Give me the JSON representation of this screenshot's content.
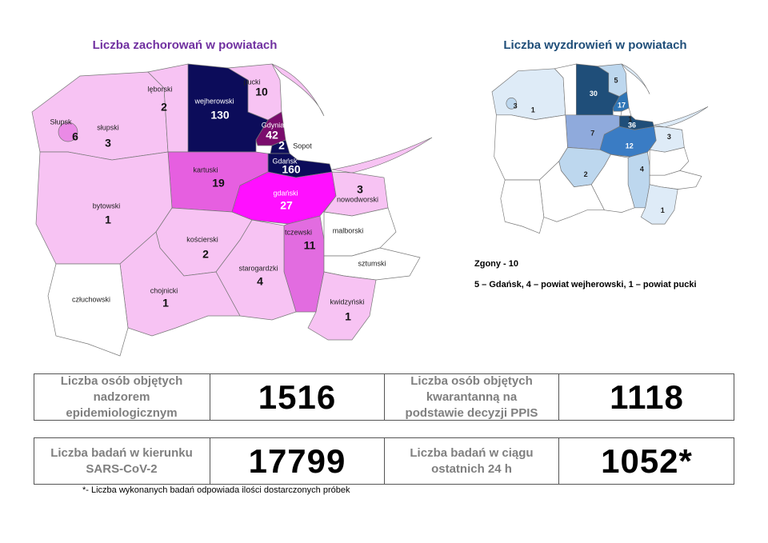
{
  "left_map": {
    "title": "Liczba zachorowań w powiatach",
    "regions": [
      {
        "name": "słupski",
        "value": 3,
        "color": "#f7c3f3"
      },
      {
        "name": "Słupsk",
        "value": 6,
        "color": "#ea8ae6"
      },
      {
        "name": "lęborski",
        "value": 2,
        "color": "#f7c3f3"
      },
      {
        "name": "wejherowski",
        "value": 130,
        "color": "#0c0c5a"
      },
      {
        "name": "pucki",
        "value": 10,
        "color": "#f7c3f3"
      },
      {
        "name": "Gdynia",
        "value": 42,
        "color": "#7a0c6c"
      },
      {
        "name": "Sopot",
        "value": 2,
        "color": "#0c0c5a"
      },
      {
        "name": "Gdańsk",
        "value": 160,
        "color": "#0c0c5a"
      },
      {
        "name": "kartuski",
        "value": 19,
        "color": "#e65fe0"
      },
      {
        "name": "gdański",
        "value": 27,
        "color": "#ff10ff"
      },
      {
        "name": "nowodworski",
        "value": 3,
        "color": "#f7c3f3"
      },
      {
        "name": "bytowski",
        "value": 1,
        "color": "#f7c3f3"
      },
      {
        "name": "kościerski",
        "value": 2,
        "color": "#f7c3f3"
      },
      {
        "name": "tczewski",
        "value": 11,
        "color": "#e26ce0"
      },
      {
        "name": "starogardzki",
        "value": 4,
        "color": "#f7c3f3"
      },
      {
        "name": "chojnicki",
        "value": 1,
        "color": "#f7c3f3"
      },
      {
        "name": "człuchowski",
        "color": "#ffffff"
      },
      {
        "name": "malborski",
        "color": "#ffffff"
      },
      {
        "name": "sztumski",
        "color": "#ffffff"
      },
      {
        "name": "kwidzyński",
        "value": 1,
        "color": "#f7c3f3"
      }
    ]
  },
  "right_map": {
    "title": "Liczba wyzdrowień w powiatach",
    "regions": [
      {
        "value": 1,
        "color": "#deebf7"
      },
      {
        "value": 3,
        "color": "#bdd7ee"
      },
      {
        "color": "#ffffff"
      },
      {
        "value": 30,
        "color": "#1f4e79"
      },
      {
        "value": 5,
        "color": "#bdd7ee"
      },
      {
        "value": 17,
        "color": "#2e75b6"
      },
      {
        "value": 1,
        "color": "#ffffff"
      },
      {
        "value": 36,
        "color": "#1f4e79"
      },
      {
        "value": 7,
        "color": "#8faadc"
      },
      {
        "value": 12,
        "color": "#3a7cc4"
      },
      {
        "value": 3,
        "color": "#deebf7"
      },
      {
        "color": "#ffffff"
      },
      {
        "value": 2,
        "color": "#bdd7ee"
      },
      {
        "value": 4,
        "color": "#bdd7ee"
      },
      {
        "color": "#ffffff"
      },
      {
        "color": "#ffffff"
      },
      {
        "color": "#ffffff"
      },
      {
        "color": "#ffffff"
      },
      {
        "color": "#ffffff"
      },
      {
        "value": 1,
        "color": "#deebf7"
      }
    ]
  },
  "deaths": {
    "title": "Zgony - 10",
    "detail": "5 – Gdańsk, 4 – powiat wejherowski, 1 – powiat pucki"
  },
  "stats": [
    [
      {
        "label": "Liczba osób objętych nadzorem epidemiologicznym",
        "value": 1516
      },
      {
        "label": "Liczba osób objętych kwarantanną na podstawie decyzji PPIS",
        "value": 1118
      }
    ],
    [
      {
        "label": "Liczba badań w kierunku SARS-CoV-2",
        "value": 17799
      },
      {
        "label": "Liczba badań w ciągu ostatnich 24 h",
        "value": {
          "value": 1052,
          "label": "1052*"
        }
      }
    ]
  ],
  "footnote": "*- Liczba wykonanych badań odpowiada ilości dostarczonych próbek"
}
